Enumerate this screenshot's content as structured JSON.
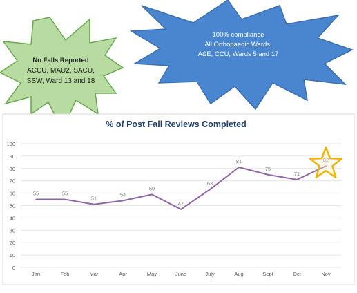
{
  "callouts": {
    "green": {
      "heading": "No Falls Reported",
      "lines": [
        "ACCU, MAU2, SACU,",
        "SSW, Ward 13 and 18"
      ],
      "fill": "#b7dba0",
      "stroke": "#6aa84f"
    },
    "blue": {
      "lines": [
        "100% compliance",
        "All Orthopaedic Wards,",
        "A&E, CCU, Wards 5 and 17"
      ],
      "fill": "#4a86cf",
      "stroke": "#3a6fb0"
    }
  },
  "colors": {
    "line": "#8e66a8",
    "title": "#1f3f6d",
    "axis_text": "#595959",
    "label_text": "#7f7f7f",
    "grid": "#e6e6e6",
    "star_fill": "#fff2cc",
    "star_stroke": "#f2b400"
  },
  "highlight": {
    "category": "Nov",
    "marker": "star-icon"
  },
  "chart_data": {
    "type": "line",
    "title": "% of Post Fall Reviews Completed",
    "xlabel": "",
    "ylabel": "",
    "categories": [
      "Jan",
      "Feb",
      "Mar",
      "Apr",
      "May",
      "June",
      "July",
      "Aug",
      "Sept",
      "Oct",
      "Nov"
    ],
    "values": [
      55,
      55,
      51,
      54,
      59,
      47,
      63,
      81,
      75,
      71,
      82
    ],
    "y_ticks": [
      0,
      10,
      20,
      30,
      40,
      50,
      60,
      70,
      80,
      90,
      100
    ],
    "ylim": [
      0,
      100
    ],
    "grid": true,
    "legend": "none",
    "data_labels": true
  }
}
